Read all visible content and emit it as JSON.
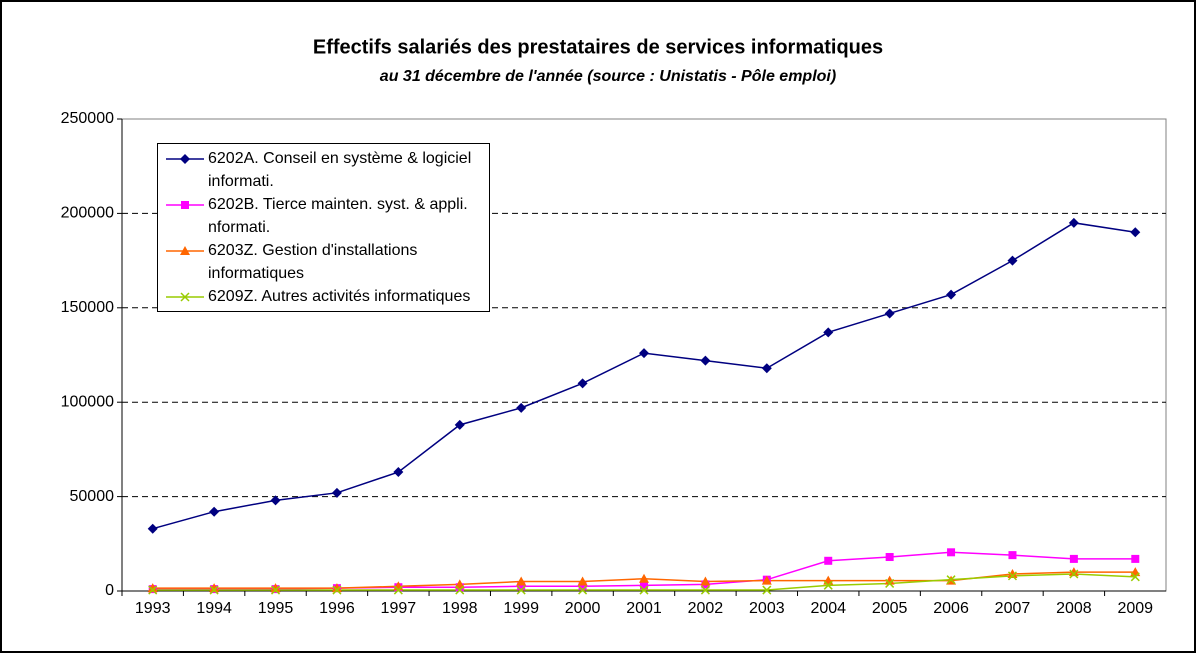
{
  "chart_data": {
    "type": "line",
    "title": "Effectifs salariés des prestataires de services informatiques",
    "subtitle": "au 31 décembre de l'année (source : Unistatis - Pôle emploi)",
    "categories": [
      "1993",
      "1994",
      "1995",
      "1996",
      "1997",
      "1998",
      "1999",
      "2000",
      "2001",
      "2002",
      "2003",
      "2004",
      "2005",
      "2006",
      "2007",
      "2008",
      "2009"
    ],
    "series": [
      {
        "name": "6202A. Conseil en système & logiciel informati.",
        "color": "#000080",
        "marker": "diamond",
        "values": [
          33000,
          42000,
          48000,
          52000,
          63000,
          88000,
          97000,
          110000,
          126000,
          122000,
          118000,
          137000,
          147000,
          157000,
          175000,
          195000,
          190000
        ]
      },
      {
        "name": "6202B. Tierce mainten. syst. & appli. nformati.",
        "color": "#ff00ff",
        "marker": "square",
        "values": [
          1000,
          1000,
          1000,
          1500,
          2000,
          2000,
          2500,
          2500,
          3000,
          3500,
          6000,
          16000,
          18000,
          20500,
          19000,
          17000,
          17000
        ]
      },
      {
        "name": "6203Z. Gestion d'installations informatiques",
        "color": "#ff6600",
        "marker": "triangle",
        "values": [
          1500,
          1500,
          1500,
          1500,
          2500,
          3500,
          5000,
          5000,
          6500,
          5000,
          5500,
          5500,
          5500,
          5500,
          9000,
          10000,
          10000
        ]
      },
      {
        "name": "6209Z. Autres activités informatiques",
        "color": "#99cc00",
        "marker": "x",
        "values": [
          500,
          500,
          500,
          500,
          500,
          500,
          500,
          500,
          500,
          500,
          500,
          3000,
          4000,
          6000,
          8000,
          9000,
          7500
        ]
      }
    ],
    "ylim": [
      0,
      250000
    ],
    "yticks": [
      0,
      50000,
      100000,
      150000,
      200000,
      250000
    ],
    "grid": true,
    "legend": "top-left"
  }
}
